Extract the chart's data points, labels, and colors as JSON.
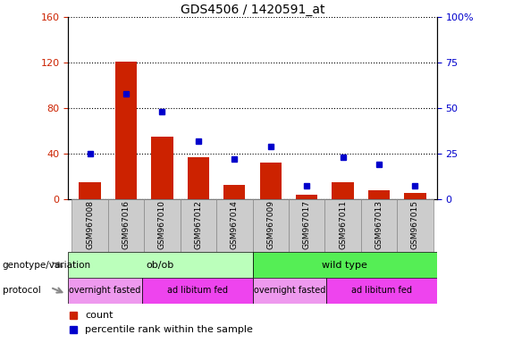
{
  "title": "GDS4506 / 1420591_at",
  "samples": [
    "GSM967008",
    "GSM967016",
    "GSM967010",
    "GSM967012",
    "GSM967014",
    "GSM967009",
    "GSM967017",
    "GSM967011",
    "GSM967013",
    "GSM967015"
  ],
  "counts": [
    15,
    121,
    55,
    37,
    12,
    32,
    4,
    15,
    8,
    5
  ],
  "percentiles": [
    25,
    58,
    48,
    32,
    22,
    29,
    7,
    23,
    19,
    7
  ],
  "bar_color": "#cc2200",
  "dot_color": "#0000cc",
  "ylim_left": [
    0,
    160
  ],
  "ylim_right": [
    0,
    100
  ],
  "yticks_left": [
    0,
    40,
    80,
    120,
    160
  ],
  "yticks_right": [
    0,
    25,
    50,
    75,
    100
  ],
  "yticklabels_right": [
    "0",
    "25",
    "50",
    "75",
    "100%"
  ],
  "genotype_groups": [
    {
      "label": "ob/ob",
      "start": 0,
      "end": 5,
      "color": "#bbffbb"
    },
    {
      "label": "wild type",
      "start": 5,
      "end": 10,
      "color": "#55ee55"
    }
  ],
  "protocol_groups": [
    {
      "label": "overnight fasted",
      "start": 0,
      "end": 2,
      "color": "#ee99ee"
    },
    {
      "label": "ad libitum fed",
      "start": 2,
      "end": 5,
      "color": "#ee44ee"
    },
    {
      "label": "overnight fasted",
      "start": 5,
      "end": 7,
      "color": "#ee99ee"
    },
    {
      "label": "ad libitum fed",
      "start": 7,
      "end": 10,
      "color": "#ee44ee"
    }
  ],
  "legend_count_label": "count",
  "legend_percentile_label": "percentile rank within the sample",
  "bg_color": "#ffffff",
  "label_left_color": "#cc2200",
  "label_right_color": "#0000cc",
  "sample_bg_color": "#cccccc",
  "sample_border_color": "#888888"
}
